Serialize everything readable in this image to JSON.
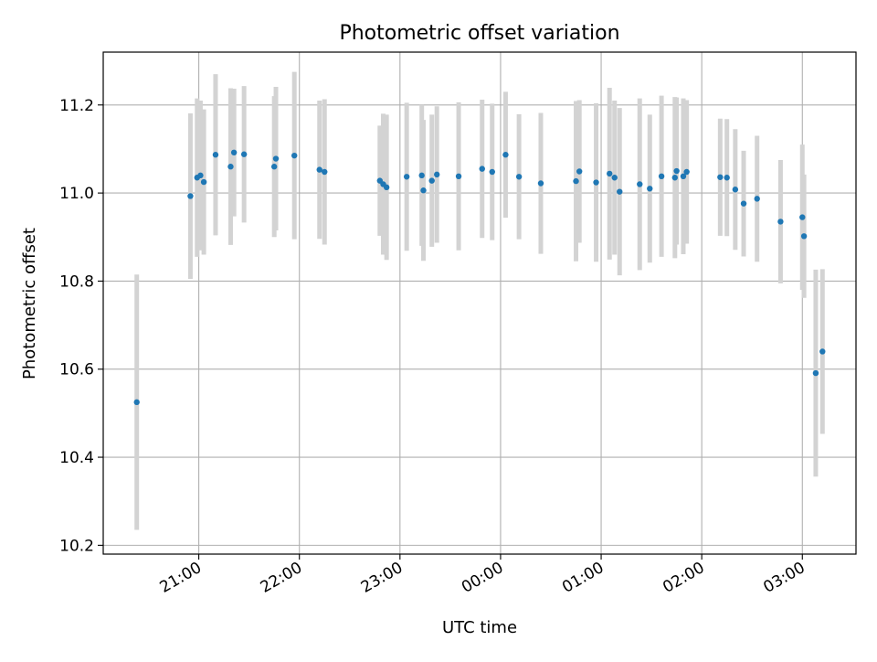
{
  "chart_data": {
    "type": "scatter",
    "title": "Photometric offset variation",
    "xlabel": "UTC time",
    "ylabel": "Photometric offset",
    "x_tick_labels": [
      "21:00",
      "22:00",
      "23:00",
      "00:00",
      "01:00",
      "02:00",
      "03:00"
    ],
    "y_tick_labels": [
      "10.2",
      "10.4",
      "10.6",
      "10.8",
      "11.0",
      "11.2"
    ],
    "x_unit": "UTC time (HH:MM)",
    "xlim": [
      "20:03",
      "03:32"
    ],
    "ylim": [
      10.18,
      11.32
    ],
    "grid": true,
    "colors": {
      "marker": "#1f77b4",
      "errorbar": "#d3d3d3",
      "grid": "#b0b0b0"
    },
    "series": [
      {
        "x": [
          "20:23",
          "20:55",
          "20:59",
          "21:01",
          "21:03",
          "21:10",
          "21:19",
          "21:21",
          "21:27",
          "21:45",
          "21:46",
          "21:57",
          "22:12",
          "22:15",
          "22:48",
          "22:50",
          "22:52",
          "23:04",
          "23:13",
          "23:14",
          "23:19",
          "23:22",
          "23:35",
          "23:49",
          "23:55",
          "24:03",
          "24:11",
          "24:24",
          "24:45",
          "24:47",
          "24:57",
          "25:05",
          "25:08",
          "25:11",
          "25:23",
          "25:29",
          "25:36",
          "25:44",
          "25:45",
          "25:49",
          "25:51",
          "26:11",
          "26:15",
          "26:20",
          "26:25",
          "26:33",
          "26:47",
          "27:00",
          "27:01",
          "27:08",
          "27:12"
        ],
        "y": [
          10.525,
          10.993,
          11.035,
          11.04,
          11.025,
          11.087,
          11.06,
          11.092,
          11.088,
          11.06,
          11.078,
          11.085,
          11.053,
          11.048,
          11.028,
          11.02,
          11.013,
          11.037,
          11.04,
          11.006,
          11.028,
          11.042,
          11.038,
          11.055,
          11.048,
          11.087,
          11.037,
          11.022,
          11.027,
          11.049,
          11.024,
          11.044,
          11.035,
          11.003,
          11.02,
          11.01,
          11.038,
          11.035,
          11.05,
          11.038,
          11.048,
          11.036,
          11.035,
          11.008,
          10.976,
          10.987,
          10.935,
          10.945,
          10.902,
          10.591,
          10.64
        ],
        "yerr": [
          0.29,
          0.188,
          0.18,
          0.17,
          0.165,
          0.183,
          0.178,
          0.145,
          0.155,
          0.16,
          0.163,
          0.19,
          0.157,
          0.165,
          0.125,
          0.16,
          0.165,
          0.168,
          0.16,
          0.16,
          0.15,
          0.155,
          0.168,
          0.157,
          0.155,
          0.143,
          0.142,
          0.16,
          0.182,
          0.162,
          0.18,
          0.195,
          0.175,
          0.19,
          0.195,
          0.168,
          0.183,
          0.183,
          0.167,
          0.177,
          0.163,
          0.133,
          0.133,
          0.137,
          0.12,
          0.143,
          0.14,
          0.165,
          0.14,
          0.235,
          0.187
        ]
      }
    ]
  }
}
